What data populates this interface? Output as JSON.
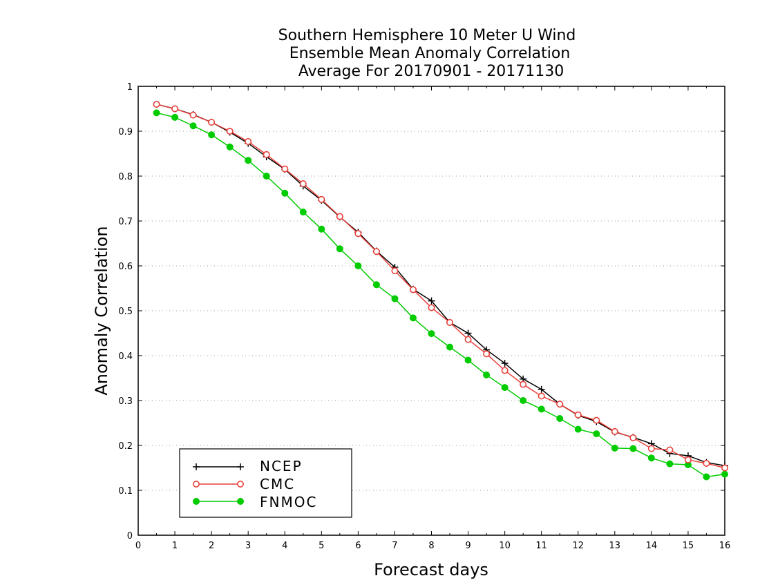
{
  "chart_data": {
    "type": "line",
    "title": [
      "Southern Hemisphere 10 Meter U Wind",
      "Ensemble Mean Anomaly Correlation",
      "Average For 20170901 - 20171130"
    ],
    "xlabel": "Forecast days",
    "ylabel": "Anomaly Correlation",
    "xlim": [
      0,
      16
    ],
    "ylim": [
      0,
      1
    ],
    "x_ticks": [
      "0",
      "1",
      "2",
      "3",
      "4",
      "5",
      "6",
      "7",
      "8",
      "9",
      "10",
      "11",
      "12",
      "13",
      "14",
      "15",
      "16"
    ],
    "y_ticks": [
      "0",
      "0.1",
      "0.2",
      "0.3",
      "0.4",
      "0.5",
      "0.6",
      "0.7",
      "0.8",
      "0.9",
      "1"
    ],
    "grid": "horizontal dotted",
    "legend_position": "bottom-left",
    "x": [
      0.5,
      1,
      1.5,
      2,
      2.5,
      3,
      3.5,
      4,
      4.5,
      5,
      5.5,
      6,
      6.5,
      7,
      7.5,
      8,
      8.5,
      9,
      9.5,
      10,
      10.5,
      11,
      11.5,
      12,
      12.5,
      13,
      13.5,
      14,
      14.5,
      15,
      15.5,
      16
    ],
    "series": [
      {
        "name": "NCEP",
        "color": "#000000",
        "marker": "plus",
        "values": [
          0.96,
          0.95,
          0.937,
          0.92,
          0.898,
          0.873,
          0.843,
          0.815,
          0.778,
          0.746,
          0.709,
          0.675,
          0.633,
          0.597,
          0.548,
          0.522,
          0.474,
          0.45,
          0.413,
          0.383,
          0.348,
          0.325,
          0.292,
          0.267,
          0.253,
          0.23,
          0.218,
          0.204,
          0.182,
          0.177,
          0.162,
          0.155
        ]
      },
      {
        "name": "CMC",
        "color": "#e8403a",
        "marker": "open-circle",
        "values": [
          0.96,
          0.95,
          0.936,
          0.92,
          0.9,
          0.877,
          0.848,
          0.816,
          0.783,
          0.748,
          0.71,
          0.672,
          0.632,
          0.589,
          0.547,
          0.507,
          0.474,
          0.436,
          0.404,
          0.367,
          0.336,
          0.31,
          0.292,
          0.268,
          0.256,
          0.231,
          0.217,
          0.193,
          0.19,
          0.168,
          0.16,
          0.15
        ]
      },
      {
        "name": "FNMOC",
        "color": "#00cc00",
        "marker": "filled-circle",
        "values": [
          0.941,
          0.931,
          0.912,
          0.892,
          0.865,
          0.835,
          0.8,
          0.762,
          0.72,
          0.682,
          0.638,
          0.6,
          0.558,
          0.527,
          0.484,
          0.449,
          0.419,
          0.39,
          0.357,
          0.329,
          0.3,
          0.281,
          0.26,
          0.236,
          0.226,
          0.194,
          0.193,
          0.172,
          0.159,
          0.157,
          0.13,
          0.136
        ]
      }
    ]
  }
}
